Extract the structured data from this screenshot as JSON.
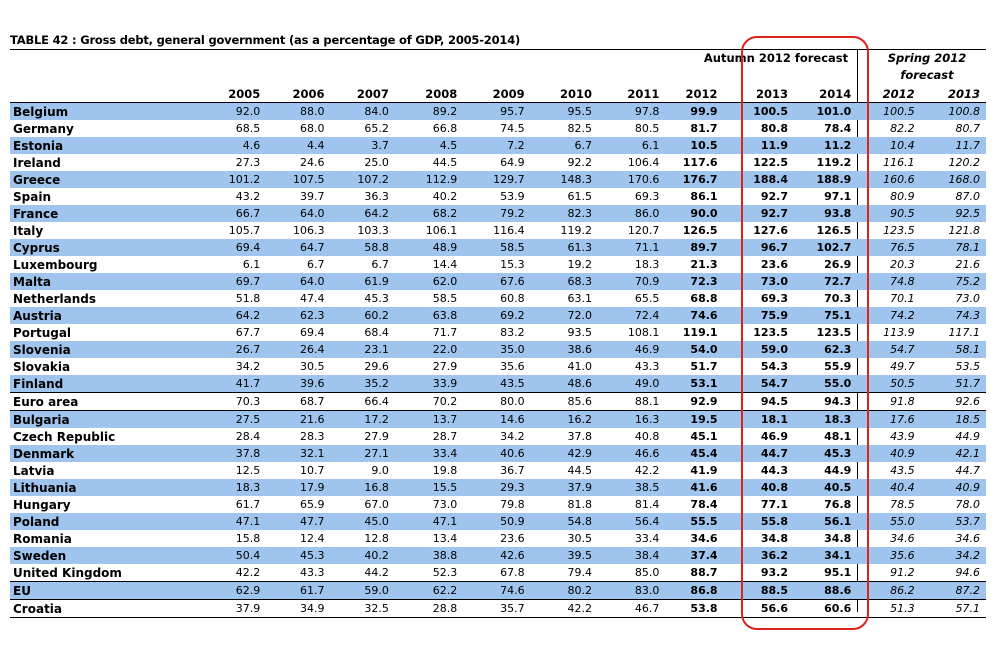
{
  "title": "TABLE 42 : Gross debt, general government (as a percentage of GDP, 2005-2014)",
  "group_headers": {
    "autumn": "Autumn 2012 forecast",
    "spring": "Spring 2012 forecast"
  },
  "columns": [
    "",
    "2005",
    "2006",
    "2007",
    "2008",
    "2009",
    "2010",
    "2011",
    "2012",
    "2013",
    "2014",
    "2012",
    "2013"
  ],
  "highlight_color": "#e0221e",
  "stripe_color": "#9fc5ee",
  "rows": [
    [
      "Belgium",
      "92.0",
      "88.0",
      "84.0",
      "89.2",
      "95.7",
      "95.5",
      "97.8",
      "99.9",
      "100.5",
      "101.0",
      "100.5",
      "100.8"
    ],
    [
      "Germany",
      "68.5",
      "68.0",
      "65.2",
      "66.8",
      "74.5",
      "82.5",
      "80.5",
      "81.7",
      "80.8",
      "78.4",
      "82.2",
      "80.7"
    ],
    [
      "Estonia",
      "4.6",
      "4.4",
      "3.7",
      "4.5",
      "7.2",
      "6.7",
      "6.1",
      "10.5",
      "11.9",
      "11.2",
      "10.4",
      "11.7"
    ],
    [
      "Ireland",
      "27.3",
      "24.6",
      "25.0",
      "44.5",
      "64.9",
      "92.2",
      "106.4",
      "117.6",
      "122.5",
      "119.2",
      "116.1",
      "120.2"
    ],
    [
      "Greece",
      "101.2",
      "107.5",
      "107.2",
      "112.9",
      "129.7",
      "148.3",
      "170.6",
      "176.7",
      "188.4",
      "188.9",
      "160.6",
      "168.0"
    ],
    [
      "Spain",
      "43.2",
      "39.7",
      "36.3",
      "40.2",
      "53.9",
      "61.5",
      "69.3",
      "86.1",
      "92.7",
      "97.1",
      "80.9",
      "87.0"
    ],
    [
      "France",
      "66.7",
      "64.0",
      "64.2",
      "68.2",
      "79.2",
      "82.3",
      "86.0",
      "90.0",
      "92.7",
      "93.8",
      "90.5",
      "92.5"
    ],
    [
      "Italy",
      "105.7",
      "106.3",
      "103.3",
      "106.1",
      "116.4",
      "119.2",
      "120.7",
      "126.5",
      "127.6",
      "126.5",
      "123.5",
      "121.8"
    ],
    [
      "Cyprus",
      "69.4",
      "64.7",
      "58.8",
      "48.9",
      "58.5",
      "61.3",
      "71.1",
      "89.7",
      "96.7",
      "102.7",
      "76.5",
      "78.1"
    ],
    [
      "Luxembourg",
      "6.1",
      "6.7",
      "6.7",
      "14.4",
      "15.3",
      "19.2",
      "18.3",
      "21.3",
      "23.6",
      "26.9",
      "20.3",
      "21.6"
    ],
    [
      "Malta",
      "69.7",
      "64.0",
      "61.9",
      "62.0",
      "67.6",
      "68.3",
      "70.9",
      "72.3",
      "73.0",
      "72.7",
      "74.8",
      "75.2"
    ],
    [
      "Netherlands",
      "51.8",
      "47.4",
      "45.3",
      "58.5",
      "60.8",
      "63.1",
      "65.5",
      "68.8",
      "69.3",
      "70.3",
      "70.1",
      "73.0"
    ],
    [
      "Austria",
      "64.2",
      "62.3",
      "60.2",
      "63.8",
      "69.2",
      "72.0",
      "72.4",
      "74.6",
      "75.9",
      "75.1",
      "74.2",
      "74.3"
    ],
    [
      "Portugal",
      "67.7",
      "69.4",
      "68.4",
      "71.7",
      "83.2",
      "93.5",
      "108.1",
      "119.1",
      "123.5",
      "123.5",
      "113.9",
      "117.1"
    ],
    [
      "Slovenia",
      "26.7",
      "26.4",
      "23.1",
      "22.0",
      "35.0",
      "38.6",
      "46.9",
      "54.0",
      "59.0",
      "62.3",
      "54.7",
      "58.1"
    ],
    [
      "Slovakia",
      "34.2",
      "30.5",
      "29.6",
      "27.9",
      "35.6",
      "41.0",
      "43.3",
      "51.7",
      "54.3",
      "55.9",
      "49.7",
      "53.5"
    ],
    [
      "Finland",
      "41.7",
      "39.6",
      "35.2",
      "33.9",
      "43.5",
      "48.6",
      "49.0",
      "53.1",
      "54.7",
      "55.0",
      "50.5",
      "51.7"
    ],
    [
      "Euro area",
      "70.3",
      "68.7",
      "66.4",
      "70.2",
      "80.0",
      "85.6",
      "88.1",
      "92.9",
      "94.5",
      "94.3",
      "91.8",
      "92.6"
    ],
    [
      "Bulgaria",
      "27.5",
      "21.6",
      "17.2",
      "13.7",
      "14.6",
      "16.2",
      "16.3",
      "19.5",
      "18.1",
      "18.3",
      "17.6",
      "18.5"
    ],
    [
      "Czech Republic",
      "28.4",
      "28.3",
      "27.9",
      "28.7",
      "34.2",
      "37.8",
      "40.8",
      "45.1",
      "46.9",
      "48.1",
      "43.9",
      "44.9"
    ],
    [
      "Denmark",
      "37.8",
      "32.1",
      "27.1",
      "33.4",
      "40.6",
      "42.9",
      "46.6",
      "45.4",
      "44.7",
      "45.3",
      "40.9",
      "42.1"
    ],
    [
      "Latvia",
      "12.5",
      "10.7",
      "9.0",
      "19.8",
      "36.7",
      "44.5",
      "42.2",
      "41.9",
      "44.3",
      "44.9",
      "43.5",
      "44.7"
    ],
    [
      "Lithuania",
      "18.3",
      "17.9",
      "16.8",
      "15.5",
      "29.3",
      "37.9",
      "38.5",
      "41.6",
      "40.8",
      "40.5",
      "40.4",
      "40.9"
    ],
    [
      "Hungary",
      "61.7",
      "65.9",
      "67.0",
      "73.0",
      "79.8",
      "81.8",
      "81.4",
      "78.4",
      "77.1",
      "76.8",
      "78.5",
      "78.0"
    ],
    [
      "Poland",
      "47.1",
      "47.7",
      "45.0",
      "47.1",
      "50.9",
      "54.8",
      "56.4",
      "55.5",
      "55.8",
      "56.1",
      "55.0",
      "53.7"
    ],
    [
      "Romania",
      "15.8",
      "12.4",
      "12.8",
      "13.4",
      "23.6",
      "30.5",
      "33.4",
      "34.6",
      "34.8",
      "34.8",
      "34.6",
      "34.6"
    ],
    [
      "Sweden",
      "50.4",
      "45.3",
      "40.2",
      "38.8",
      "42.6",
      "39.5",
      "38.4",
      "37.4",
      "36.2",
      "34.1",
      "35.6",
      "34.2"
    ],
    [
      "United Kingdom",
      "42.2",
      "43.3",
      "44.2",
      "52.3",
      "67.8",
      "79.4",
      "85.0",
      "88.7",
      "93.2",
      "95.1",
      "91.2",
      "94.6"
    ],
    [
      "EU",
      "62.9",
      "61.7",
      "59.0",
      "62.2",
      "74.6",
      "80.2",
      "83.0",
      "86.8",
      "88.5",
      "88.6",
      "86.2",
      "87.2"
    ],
    [
      "Croatia",
      "37.9",
      "34.9",
      "32.5",
      "28.8",
      "35.7",
      "42.2",
      "46.7",
      "53.8",
      "56.6",
      "60.6",
      "51.3",
      "57.1"
    ]
  ]
}
